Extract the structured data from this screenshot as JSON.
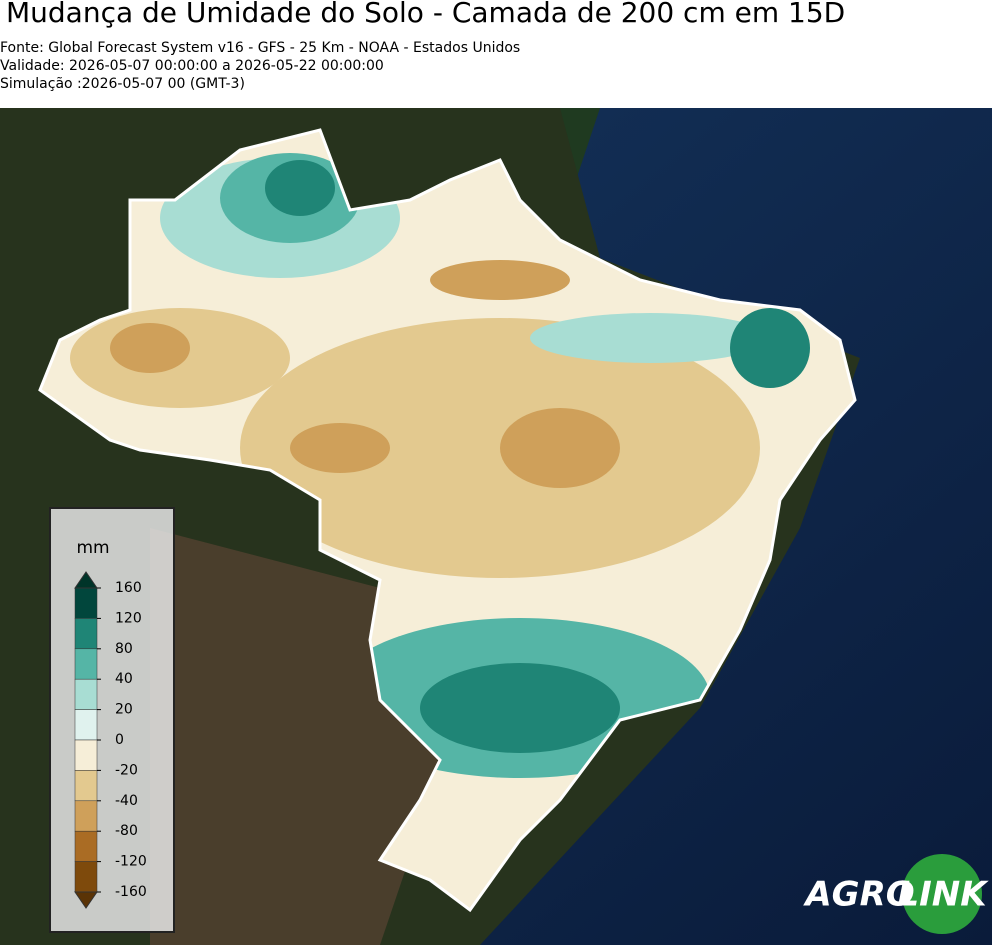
{
  "header": {
    "title": "Mudança de Umidade do Solo - Camada de 200 cm em 15D",
    "lines": [
      "Fonte: Global Forecast System v16 - GFS - 25 Km - NOAA - Estados Unidos",
      "Validade: 2026-05-07 00:00:00 a 2026-05-22 00:00:00",
      "Simulação :2026-05-07 00 (GMT-3)"
    ]
  },
  "colorbar": {
    "label": "mm",
    "ticks": [
      160,
      120,
      80,
      40,
      20,
      0,
      -20,
      -40,
      -80,
      -120,
      -160
    ],
    "colors": [
      "#01463c",
      "#1f8576",
      "#55b5a6",
      "#a8ddd3",
      "#e0f2ee",
      "#f6eed8",
      "#e3c98f",
      "#cfa05a",
      "#aa6c24",
      "#7e4a0c"
    ],
    "extend_colors": [
      "#003429",
      "#5a3306"
    ]
  },
  "logo": {
    "left": "AGRO",
    "right": "LINK"
  }
}
